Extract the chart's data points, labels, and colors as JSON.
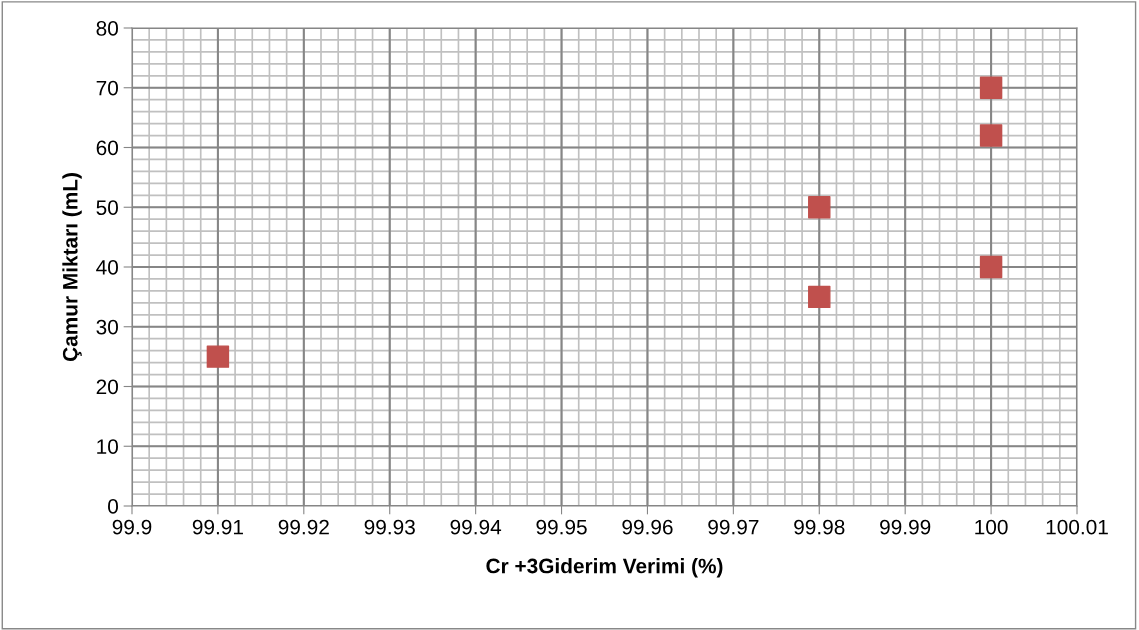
{
  "chart_data": {
    "type": "scatter",
    "xlabel": "Cr +3Giderim Verimi (%)",
    "ylabel": "Çamur Miktarı (mL)",
    "x": [
      99.91,
      99.98,
      99.98,
      100,
      100,
      100
    ],
    "series": [
      {
        "color": "#c0504d",
        "values": [
          25,
          50,
          35,
          70,
          62,
          40
        ]
      }
    ],
    "xlim": [
      99.9,
      100.01
    ],
    "xticks": [
      {
        "value": 99.9,
        "label": "99.9"
      },
      99.91,
      99.92,
      99.93,
      99.94,
      99.95,
      99.96,
      99.97,
      99.98,
      99.99,
      {
        "value": 100,
        "label": "100"
      },
      100.01
    ],
    "ylim": [
      0,
      80
    ],
    "yticks": [
      0,
      10,
      20,
      30,
      40,
      50,
      60,
      70,
      80
    ],
    "grid": true,
    "marker": "square",
    "legend": false
  }
}
